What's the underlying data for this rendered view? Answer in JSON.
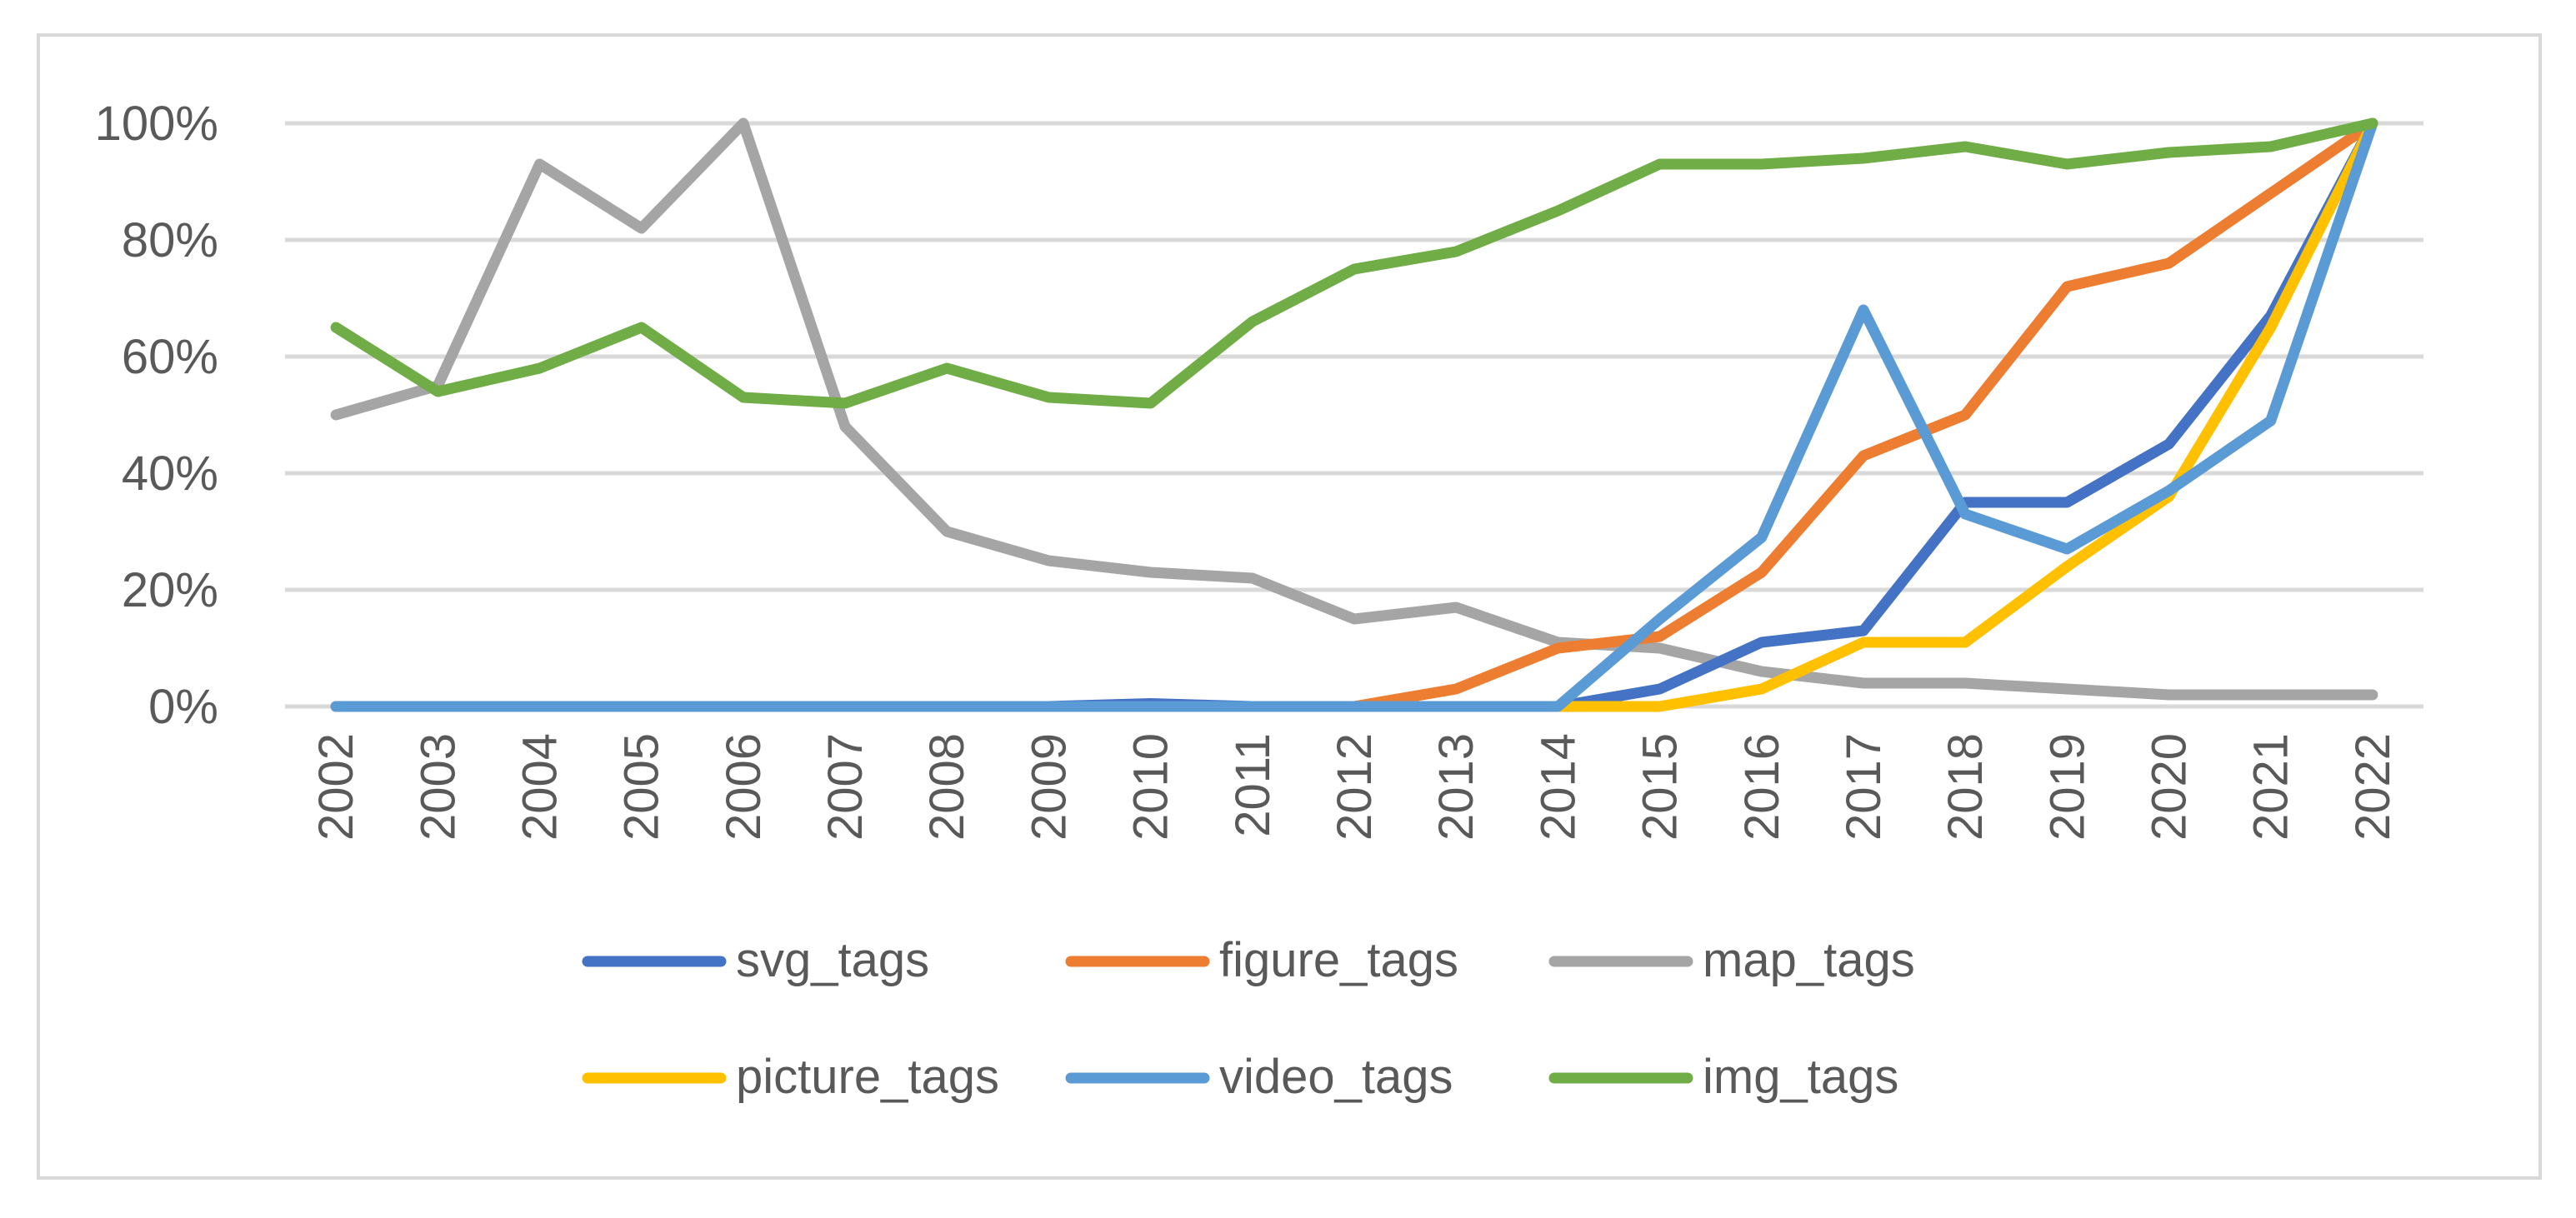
{
  "chart_data": {
    "type": "line",
    "title": "",
    "xlabel": "",
    "ylabel": "",
    "ylim": [
      0,
      1
    ],
    "y_ticks": [
      "0%",
      "20%",
      "40%",
      "60%",
      "80%",
      "100%"
    ],
    "y_tick_values": [
      0,
      0.2,
      0.4,
      0.6,
      0.8,
      1.0
    ],
    "grid": true,
    "legend_position": "bottom",
    "categories": [
      "2002",
      "2003",
      "2004",
      "2005",
      "2006",
      "2007",
      "2008",
      "2009",
      "2010",
      "2011",
      "2012",
      "2013",
      "2014",
      "2015",
      "2016",
      "2017",
      "2018",
      "2019",
      "2020",
      "2021",
      "2022"
    ],
    "series": [
      {
        "name": "svg_tags",
        "color": "#4472C4",
        "values": [
          0,
          0,
          0,
          0,
          0,
          0,
          0,
          0,
          0.005,
          0,
          0,
          0,
          0,
          0.03,
          0.11,
          0.13,
          0.35,
          0.35,
          0.45,
          0.67,
          1.0
        ]
      },
      {
        "name": "figure_tags",
        "color": "#ED7D31",
        "values": [
          0,
          0,
          0,
          0,
          0,
          0,
          0,
          0,
          0,
          0,
          0,
          0.03,
          0.1,
          0.12,
          0.23,
          0.43,
          0.5,
          0.72,
          0.76,
          0.88,
          1.0
        ]
      },
      {
        "name": "map_tags",
        "color": "#A5A5A5",
        "values": [
          0.5,
          0.55,
          0.93,
          0.82,
          1.0,
          0.48,
          0.3,
          0.25,
          0.23,
          0.22,
          0.15,
          0.17,
          0.11,
          0.1,
          0.06,
          0.04,
          0.04,
          0.03,
          0.02,
          0.02,
          0.02
        ]
      },
      {
        "name": "picture_tags",
        "color": "#FFC000",
        "values": [
          null,
          null,
          null,
          null,
          null,
          null,
          null,
          null,
          null,
          null,
          null,
          null,
          0,
          0,
          0.03,
          0.11,
          0.11,
          0.24,
          0.36,
          0.65,
          1.0
        ]
      },
      {
        "name": "video_tags",
        "color": "#5B9BD5",
        "values": [
          0,
          0,
          0,
          0,
          0,
          0,
          0,
          0,
          0,
          0,
          0,
          0,
          0,
          0.15,
          0.29,
          0.68,
          0.33,
          0.27,
          0.37,
          0.49,
          1.0
        ]
      },
      {
        "name": "img_tags",
        "color": "#70AD47",
        "values": [
          0.65,
          0.54,
          0.58,
          0.65,
          0.53,
          0.52,
          0.58,
          0.53,
          0.52,
          0.66,
          0.75,
          0.78,
          0.85,
          0.93,
          0.93,
          0.94,
          0.96,
          0.93,
          0.95,
          0.96,
          1.0
        ]
      }
    ],
    "legend_order": [
      [
        "svg_tags",
        "figure_tags",
        "map_tags"
      ],
      [
        "picture_tags",
        "video_tags",
        "img_tags"
      ]
    ]
  }
}
